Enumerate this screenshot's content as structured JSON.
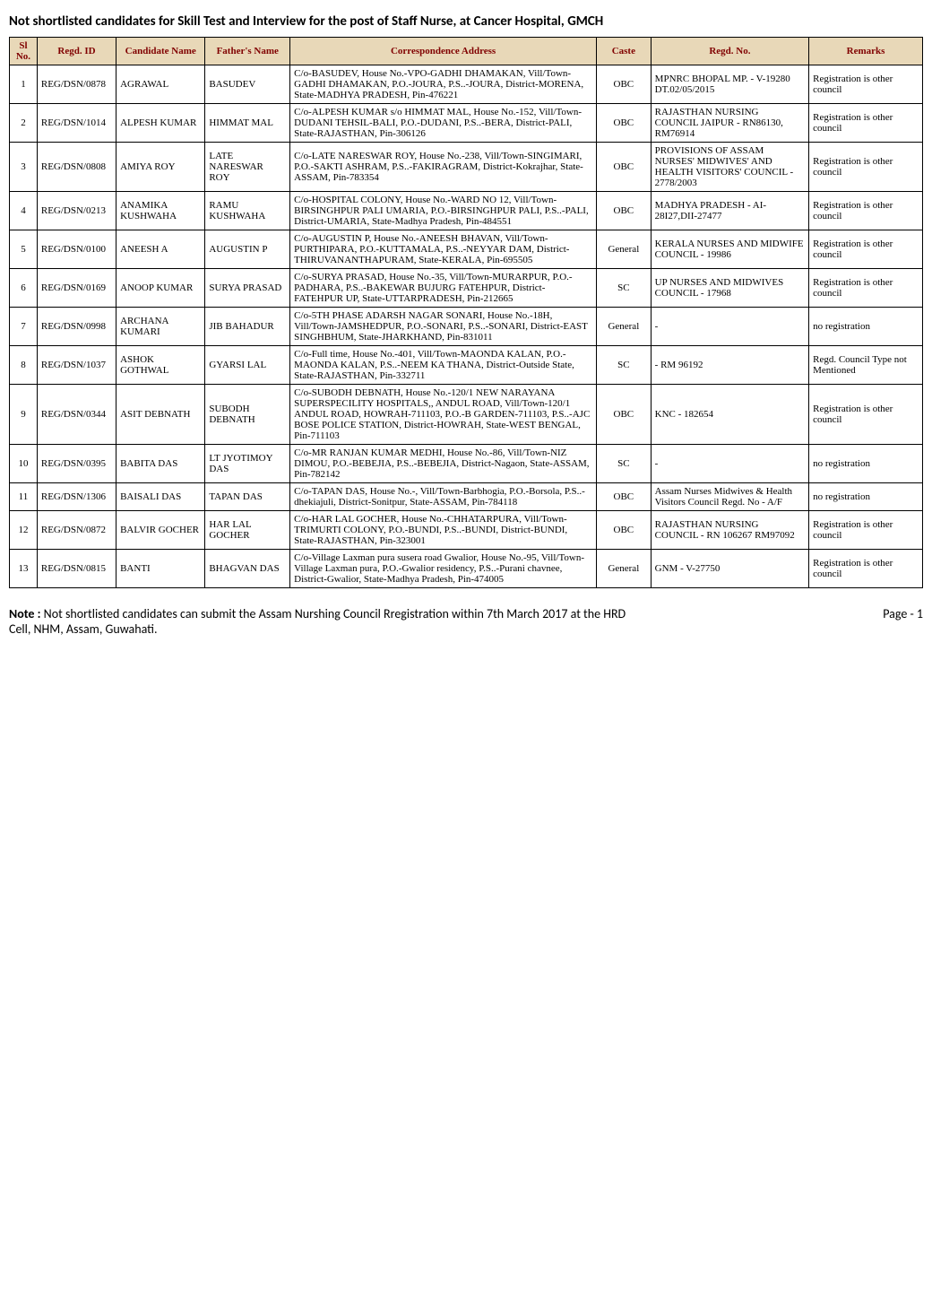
{
  "title": "Not shortlisted candidates  for Skill Test and Interview for the post of Staff Nurse, at Cancer Hospital, GMCH",
  "table": {
    "headers": {
      "sl": "Sl No.",
      "regd_id": "Regd. ID",
      "candidate": "Candidate Name",
      "father": "Father's Name",
      "address": "Correspondence Address",
      "caste": "Caste",
      "regd_no": "Regd. No.",
      "remarks": "Remarks"
    },
    "header_bg": "#e8d8b8",
    "header_color": "#800000",
    "rows": [
      {
        "sl": "1",
        "regd_id": "REG/DSN/0878",
        "candidate": "AGRAWAL",
        "father": "BASUDEV",
        "address": "C/o-BASUDEV, House No.-VPO-GADHI DHAMAKAN, Vill/Town-GADHI DHAMAKAN, P.O.-JOURA, P.S..-JOURA, District-MORENA, State-MADHYA PRADESH, Pin-476221",
        "caste": "OBC",
        "regd_no": "MPNRC BHOPAL MP. - V-19280 DT.02/05/2015",
        "remarks": "Registration is other council"
      },
      {
        "sl": "2",
        "regd_id": "REG/DSN/1014",
        "candidate": "ALPESH KUMAR",
        "father": "HIMMAT MAL",
        "address": "C/o-ALPESH KUMAR s/o HIMMAT MAL, House No.-152, Vill/Town-DUDANI TEHSIL-BALI, P.O.-DUDANI, P.S..-BERA, District-PALI, State-RAJASTHAN, Pin-306126",
        "caste": "OBC",
        "regd_no": "RAJASTHAN NURSING COUNCIL JAIPUR - RN86130, RM76914",
        "remarks": "Registration is other council"
      },
      {
        "sl": "3",
        "regd_id": "REG/DSN/0808",
        "candidate": "AMIYA ROY",
        "father": "LATE NARESWAR ROY",
        "address": "C/o-LATE NARESWAR ROY, House No.-238, Vill/Town-SINGIMARI, P.O.-SAKTI ASHRAM, P.S..-FAKIRAGRAM, District-Kokrajhar, State-ASSAM, Pin-783354",
        "caste": "OBC",
        "regd_no": "PROVISIONS OF ASSAM NURSES' MIDWIVES' AND HEALTH VISITORS' COUNCIL - 2778/2003",
        "remarks": "Registration is other council"
      },
      {
        "sl": "4",
        "regd_id": "REG/DSN/0213",
        "candidate": "ANAMIKA KUSHWAHA",
        "father": "RAMU KUSHWAHA",
        "address": "C/o-HOSPITAL COLONY, House No.-WARD NO 12, Vill/Town-BIRSINGHPUR PALI UMARIA, P.O.-BIRSINGHPUR PALI, P.S..-PALI, District-UMARIA, State-Madhya Pradesh, Pin-484551",
        "caste": "OBC",
        "regd_no": "MADHYA PRADESH - AI-28I27,DII-27477",
        "remarks": "Registration is other council"
      },
      {
        "sl": "5",
        "regd_id": "REG/DSN/0100",
        "candidate": "ANEESH A",
        "father": "AUGUSTIN P",
        "address": "C/o-AUGUSTIN P, House No.-ANEESH BHAVAN, Vill/Town-PURTHIPARA, P.O.-KUTTAMALA, P.S..-NEYYAR DAM, District-THIRUVANANTHAPURAM, State-KERALA, Pin-695505",
        "caste": "General",
        "regd_no": "KERALA NURSES AND MIDWIFE COUNCIL - 19986",
        "remarks": "Registration is other council"
      },
      {
        "sl": "6",
        "regd_id": "REG/DSN/0169",
        "candidate": "ANOOP KUMAR",
        "father": "SURYA PRASAD",
        "address": "C/o-SURYA PRASAD, House No.-35, Vill/Town-MURARPUR, P.O.-PADHARA, P.S..-BAKEWAR BUJURG FATEHPUR, District-FATEHPUR UP, State-UTTARPRADESH, Pin-212665",
        "caste": "SC",
        "regd_no": "UP NURSES AND MIDWIVES COUNCIL - 17968",
        "remarks": "Registration is other council"
      },
      {
        "sl": "7",
        "regd_id": "REG/DSN/0998",
        "candidate": "ARCHANA KUMARI",
        "father": "JIB BAHADUR",
        "address": "C/o-5TH PHASE ADARSH NAGAR SONARI, House No.-18H, Vill/Town-JAMSHEDPUR, P.O.-SONARI, P.S..-SONARI, District-EAST SINGHBHUM, State-JHARKHAND, Pin-831011",
        "caste": "General",
        "regd_no": "-",
        "remarks": "no registration"
      },
      {
        "sl": "8",
        "regd_id": "REG/DSN/1037",
        "candidate": "ASHOK GOTHWAL",
        "father": "GYARSI LAL",
        "address": "C/o-Full time, House No.-401, Vill/Town-MAONDA KALAN, P.O.-MAONDA KALAN, P.S..-NEEM KA THANA, District-Outside State, State-RAJASTHAN, Pin-332711",
        "caste": "SC",
        "regd_no": "- RM 96192",
        "remarks": "Regd. Council Type not Mentioned"
      },
      {
        "sl": "9",
        "regd_id": "REG/DSN/0344",
        "candidate": "ASIT DEBNATH",
        "father": "SUBODH DEBNATH",
        "address": "C/o-SUBODH DEBNATH, House No.-120/1 NEW NARAYANA SUPERSPECILITY HOSPITALS,, ANDUL ROAD, Vill/Town-120/1 ANDUL ROAD, HOWRAH-711103, P.O.-B GARDEN-711103, P.S..-AJC BOSE POLICE STATION, District-HOWRAH, State-WEST BENGAL, Pin-711103",
        "caste": "OBC",
        "regd_no": "KNC - 182654",
        "remarks": "Registration is other council"
      },
      {
        "sl": "10",
        "regd_id": "REG/DSN/0395",
        "candidate": "BABITA DAS",
        "father": "LT JYOTIMOY DAS",
        "address": "C/o-MR RANJAN KUMAR MEDHI, House No.-86, Vill/Town-NIZ DIMOU, P.O.-BEBEJIA, P.S..-BEBEJIA, District-Nagaon, State-ASSAM, Pin-782142",
        "caste": "SC",
        "regd_no": "-",
        "remarks": "no registration"
      },
      {
        "sl": "11",
        "regd_id": "REG/DSN/1306",
        "candidate": "BAISALI DAS",
        "father": "TAPAN DAS",
        "address": "C/o-TAPAN DAS, House No.-, Vill/Town-Barbhogia, P.O.-Borsola, P.S..-dhekiajuli, District-Sonitpur, State-ASSAM, Pin-784118",
        "caste": "OBC",
        "regd_no": "Assam Nurses Midwives & Health Visitors Council Regd. No - A/F",
        "remarks": "no registration"
      },
      {
        "sl": "12",
        "regd_id": "REG/DSN/0872",
        "candidate": "BALVIR GOCHER",
        "father": "HAR LAL GOCHER",
        "address": "C/o-HAR LAL GOCHER, House No.-CHHATARPURA, Vill/Town-TRIMURTI COLONY, P.O.-BUNDI, P.S..-BUNDI, District-BUNDI, State-RAJASTHAN, Pin-323001",
        "caste": "OBC",
        "regd_no": "RAJASTHAN NURSING COUNCIL - RN 106267 RM97092",
        "remarks": "Registration is other council"
      },
      {
        "sl": "13",
        "regd_id": "REG/DSN/0815",
        "candidate": "BANTI",
        "father": "BHAGVAN DAS",
        "address": "C/o-Village Laxman pura susera road Gwalior, House No.-95, Vill/Town-Village Laxman pura, P.O.-Gwalior residency, P.S..-Purani chavnee, District-Gwalior, State-Madhya Pradesh, Pin-474005",
        "caste": "General",
        "regd_no": "GNM - V-27750",
        "remarks": "Registration is other council"
      }
    ]
  },
  "footer": {
    "note_prefix": "Note :",
    "note_text": " Not shortlisted candidates can submit the Assam Nurshing Council Rregistration within 7th March 2017 at the HRD Cell, NHM, Assam, Guwahati.",
    "page": "Page - 1"
  }
}
